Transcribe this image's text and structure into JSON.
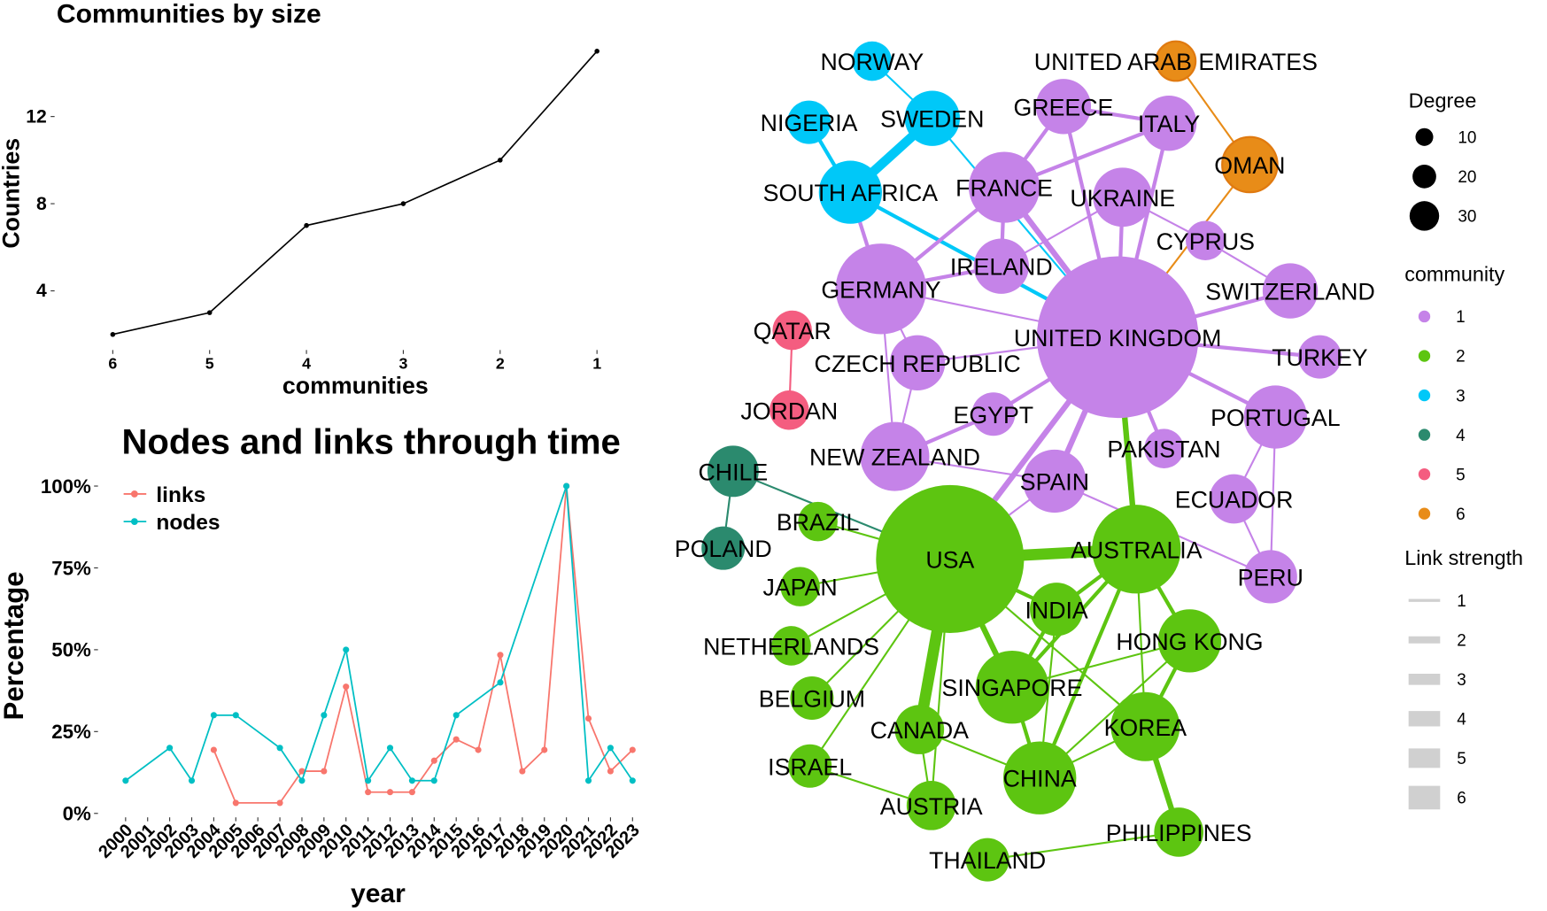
{
  "chart_data": [
    {
      "type": "line",
      "title": "Communities by size",
      "xlabel": "communities",
      "ylabel": "Countries",
      "categories": [
        "6",
        "5",
        "4",
        "3",
        "2",
        "1"
      ],
      "values": [
        2,
        3,
        7,
        8,
        10,
        15
      ],
      "yticks": [
        "4",
        "8",
        "12"
      ],
      "ylim": [
        1.5,
        15.5
      ]
    },
    {
      "type": "line",
      "title": "Nodes and links through time",
      "xlabel": "year",
      "ylabel": "Percentage",
      "x": [
        "2000",
        "2001",
        "2002",
        "2003",
        "2004",
        "2005",
        "2006",
        "2007",
        "2008",
        "2009",
        "2010",
        "2011",
        "2012",
        "2013",
        "2014",
        "2015",
        "2016",
        "2017",
        "2018",
        "2019",
        "2020",
        "2021",
        "2022",
        "2023"
      ],
      "yticks": [
        "0%",
        "25%",
        "50%",
        "75%",
        "100%"
      ],
      "ylim": [
        0,
        100
      ],
      "legend": "top-left",
      "series": [
        {
          "name": "links",
          "color": "#f8766d",
          "values": [
            null,
            null,
            null,
            null,
            19.4,
            3.2,
            null,
            3.2,
            12.9,
            12.9,
            38.7,
            6.5,
            6.5,
            6.5,
            16.1,
            22.6,
            19.4,
            48.4,
            12.9,
            19.4,
            100,
            29.0,
            12.9,
            19.4
          ]
        },
        {
          "name": "nodes",
          "color": "#00bfc4",
          "values": [
            10,
            null,
            20,
            10,
            30,
            30,
            null,
            20,
            10,
            30,
            50,
            10,
            20,
            10,
            10,
            30,
            null,
            40,
            null,
            null,
            100,
            10,
            20,
            10
          ]
        }
      ]
    },
    {
      "type": "network",
      "communities": [
        {
          "id": "1",
          "color": "#c583e8"
        },
        {
          "id": "2",
          "color": "#5dc511"
        },
        {
          "id": "3",
          "color": "#00c8f8"
        },
        {
          "id": "4",
          "color": "#2b8a6e"
        },
        {
          "id": "5",
          "color": "#f45d80"
        },
        {
          "id": "6",
          "color": "#e88c18"
        }
      ],
      "legend": {
        "degree_title": "Degree",
        "degree_values": [
          "10",
          "20",
          "30"
        ],
        "community_title": "community",
        "strength_title": "Link strength",
        "strength_values": [
          "1",
          "2",
          "3",
          "4",
          "5",
          "6"
        ]
      },
      "nodes": [
        {
          "name": "NORWAY",
          "c": 3
        },
        {
          "name": "SWEDEN",
          "c": 3
        },
        {
          "name": "NIGERIA",
          "c": 3
        },
        {
          "name": "SOUTH AFRICA",
          "c": 3
        },
        {
          "name": "FRANCE",
          "c": 1
        },
        {
          "name": "GREECE",
          "c": 1
        },
        {
          "name": "ITALY",
          "c": 1
        },
        {
          "name": "UNITED ARAB EMIRATES",
          "c": 6
        },
        {
          "name": "OMAN",
          "c": 6
        },
        {
          "name": "UKRAINE",
          "c": 1
        },
        {
          "name": "CYPRUS",
          "c": 1
        },
        {
          "name": "IRELAND",
          "c": 1
        },
        {
          "name": "UNITED KINGDOM",
          "c": 1
        },
        {
          "name": "GERMANY",
          "c": 1
        },
        {
          "name": "SWITZERLAND",
          "c": 1
        },
        {
          "name": "TURKEY",
          "c": 1
        },
        {
          "name": "QATAR",
          "c": 5
        },
        {
          "name": "JORDAN",
          "c": 5
        },
        {
          "name": "CZECH REPUBLIC",
          "c": 1
        },
        {
          "name": "EGYPT",
          "c": 1
        },
        {
          "name": "PORTUGAL",
          "c": 1
        },
        {
          "name": "NEW ZEALAND",
          "c": 1
        },
        {
          "name": "PAKISTAN",
          "c": 1
        },
        {
          "name": "SPAIN",
          "c": 1
        },
        {
          "name": "ECUADOR",
          "c": 1
        },
        {
          "name": "PERU",
          "c": 1
        },
        {
          "name": "CHILE",
          "c": 4
        },
        {
          "name": "POLAND",
          "c": 4
        },
        {
          "name": "BRAZIL",
          "c": 2
        },
        {
          "name": "USA",
          "c": 2
        },
        {
          "name": "AUSTRALIA",
          "c": 2
        },
        {
          "name": "JAPAN",
          "c": 2
        },
        {
          "name": "INDIA",
          "c": 2
        },
        {
          "name": "NETHERLANDS",
          "c": 2
        },
        {
          "name": "HONG KONG",
          "c": 2
        },
        {
          "name": "BELGIUM",
          "c": 2
        },
        {
          "name": "SINGAPORE",
          "c": 2
        },
        {
          "name": "CANADA",
          "c": 2
        },
        {
          "name": "KOREA",
          "c": 2
        },
        {
          "name": "ISRAEL",
          "c": 2
        },
        {
          "name": "CHINA",
          "c": 2
        },
        {
          "name": "AUSTRIA",
          "c": 2
        },
        {
          "name": "PHILIPPINES",
          "c": 2
        },
        {
          "name": "THAILAND",
          "c": 2
        }
      ],
      "links": [
        [
          "NORWAY",
          "SWEDEN",
          1,
          3
        ],
        [
          "NIGERIA",
          "SOUTH AFRICA",
          2,
          3
        ],
        [
          "SWEDEN",
          "SOUTH AFRICA",
          5,
          3
        ],
        [
          "SWEDEN",
          "UNITED KINGDOM",
          1,
          3
        ],
        [
          "SOUTH AFRICA",
          "UNITED KINGDOM",
          2,
          3
        ],
        [
          "SOUTH AFRICA",
          "GERMANY",
          2,
          1
        ],
        [
          "FRANCE",
          "GREECE",
          2,
          1
        ],
        [
          "FRANCE",
          "ITALY",
          2,
          1
        ],
        [
          "FRANCE",
          "GERMANY",
          2,
          1
        ],
        [
          "FRANCE",
          "IRELAND",
          2,
          1
        ],
        [
          "FRANCE",
          "UNITED KINGDOM",
          3,
          1
        ],
        [
          "GREECE",
          "ITALY",
          2,
          1
        ],
        [
          "GREECE",
          "UNITED KINGDOM",
          2,
          1
        ],
        [
          "ITALY",
          "UNITED KINGDOM",
          2,
          1
        ],
        [
          "UKRAINE",
          "UNITED KINGDOM",
          2,
          1
        ],
        [
          "UKRAINE",
          "IRELAND",
          1,
          1
        ],
        [
          "UNITED ARAB EMIRATES",
          "OMAN",
          1,
          6
        ],
        [
          "OMAN",
          "UNITED KINGDOM",
          1,
          6
        ],
        [
          "CYPRUS",
          "SWITZERLAND",
          1,
          1
        ],
        [
          "CYPRUS",
          "UKRAINE",
          1,
          1
        ],
        [
          "GERMANY",
          "IRELAND",
          2,
          1
        ],
        [
          "GERMANY",
          "UNITED KINGDOM",
          1,
          1
        ],
        [
          "GERMANY",
          "CZECH REPUBLIC",
          1,
          1
        ],
        [
          "GERMANY",
          "NEW ZEALAND",
          1,
          1
        ],
        [
          "UNITED KINGDOM",
          "SWITZERLAND",
          2,
          1
        ],
        [
          "UNITED KINGDOM",
          "TURKEY",
          2,
          1
        ],
        [
          "UNITED KINGDOM",
          "CZECH REPUBLIC",
          1,
          1
        ],
        [
          "UNITED KINGDOM",
          "EGYPT",
          2,
          1
        ],
        [
          "UNITED KINGDOM",
          "PORTUGAL",
          2,
          1
        ],
        [
          "UNITED KINGDOM",
          "SPAIN",
          3,
          1
        ],
        [
          "UNITED KINGDOM",
          "PAKISTAN",
          2,
          1
        ],
        [
          "UNITED KINGDOM",
          "AUSTRALIA",
          3,
          2
        ],
        [
          "UNITED KINGDOM",
          "USA",
          3,
          1
        ],
        [
          "EGYPT",
          "NEW ZEALAND",
          2,
          1
        ],
        [
          "CZECH REPUBLIC",
          "NEW ZEALAND",
          1,
          1
        ],
        [
          "QATAR",
          "JORDAN",
          1,
          5
        ],
        [
          "PORTUGAL",
          "ECUADOR",
          1,
          1
        ],
        [
          "PORTUGAL",
          "PERU",
          1,
          1
        ],
        [
          "ECUADOR",
          "PERU",
          1,
          1
        ],
        [
          "NEW ZEALAND",
          "SPAIN",
          1,
          1
        ],
        [
          "SPAIN",
          "USA",
          1,
          1
        ],
        [
          "SPAIN",
          "PERU",
          1,
          1
        ],
        [
          "CHILE",
          "POLAND",
          1,
          4
        ],
        [
          "CHILE",
          "USA",
          1,
          4
        ],
        [
          "BRAZIL",
          "USA",
          1,
          2
        ],
        [
          "USA",
          "AUSTRALIA",
          6,
          2
        ],
        [
          "USA",
          "JAPAN",
          1,
          2
        ],
        [
          "USA",
          "INDIA",
          2,
          2
        ],
        [
          "USA",
          "NETHERLANDS",
          1,
          2
        ],
        [
          "USA",
          "BELGIUM",
          1,
          2
        ],
        [
          "USA",
          "ISRAEL",
          1,
          2
        ],
        [
          "USA",
          "CANADA",
          6,
          2
        ],
        [
          "USA",
          "SINGAPORE",
          3,
          2
        ],
        [
          "USA",
          "KOREA",
          1,
          2
        ],
        [
          "USA",
          "AUSTRIA",
          1,
          2
        ],
        [
          "AUSTRALIA",
          "INDIA",
          2,
          2
        ],
        [
          "AUSTRALIA",
          "SINGAPORE",
          2,
          2
        ],
        [
          "AUSTRALIA",
          "CHINA",
          2,
          2
        ],
        [
          "AUSTRALIA",
          "HONG KONG",
          2,
          2
        ],
        [
          "AUSTRALIA",
          "KOREA",
          1,
          2
        ],
        [
          "INDIA",
          "SINGAPORE",
          2,
          2
        ],
        [
          "INDIA",
          "CHINA",
          1,
          2
        ],
        [
          "SINGAPORE",
          "HONG KONG",
          1,
          2
        ],
        [
          "SINGAPORE",
          "CHINA",
          2,
          2
        ],
        [
          "HONG KONG",
          "KOREA",
          2,
          2
        ],
        [
          "HONG KONG",
          "CHINA",
          1,
          2
        ],
        [
          "KOREA",
          "CHINA",
          1,
          2
        ],
        [
          "KOREA",
          "PHILIPPINES",
          3,
          2
        ],
        [
          "CANADA",
          "CHINA",
          1,
          2
        ],
        [
          "CANADA",
          "AUSTRIA",
          1,
          2
        ],
        [
          "ISRAEL",
          "AUSTRIA",
          1,
          2
        ],
        [
          "THAILAND",
          "PHILIPPINES",
          1,
          2
        ]
      ]
    }
  ]
}
